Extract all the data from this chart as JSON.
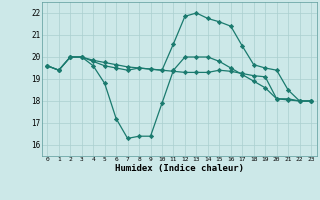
{
  "xlabel": "Humidex (Indice chaleur)",
  "x": [
    0,
    1,
    2,
    3,
    4,
    5,
    6,
    7,
    8,
    9,
    10,
    11,
    12,
    13,
    14,
    15,
    16,
    17,
    18,
    19,
    20,
    21,
    22,
    23
  ],
  "line1": [
    19.6,
    19.4,
    20.0,
    20.0,
    19.85,
    19.75,
    19.65,
    19.55,
    19.5,
    19.45,
    19.4,
    19.35,
    19.3,
    19.3,
    19.3,
    19.4,
    19.35,
    19.25,
    19.15,
    19.1,
    18.1,
    18.05,
    18.0,
    18.0
  ],
  "line2": [
    19.6,
    19.4,
    20.0,
    20.0,
    19.8,
    19.6,
    19.5,
    19.4,
    19.5,
    19.45,
    19.4,
    20.6,
    21.85,
    22.0,
    21.75,
    21.6,
    21.4,
    20.5,
    19.65,
    19.5,
    19.4,
    18.5,
    18.0,
    18.0
  ],
  "line3": [
    19.6,
    19.4,
    20.0,
    20.0,
    19.6,
    18.8,
    17.2,
    16.3,
    16.4,
    16.4,
    17.9,
    19.4,
    20.0,
    20.0,
    20.0,
    19.8,
    19.5,
    19.2,
    18.9,
    18.6,
    18.1,
    18.1,
    18.0,
    18.0
  ],
  "line_color": "#1a7a6e",
  "bg_color": "#cce8e8",
  "grid_color": "#aacfcf",
  "ylim": [
    15.5,
    22.5
  ],
  "xlim": [
    -0.5,
    23.5
  ],
  "yticks": [
    16,
    17,
    18,
    19,
    20,
    21,
    22
  ]
}
